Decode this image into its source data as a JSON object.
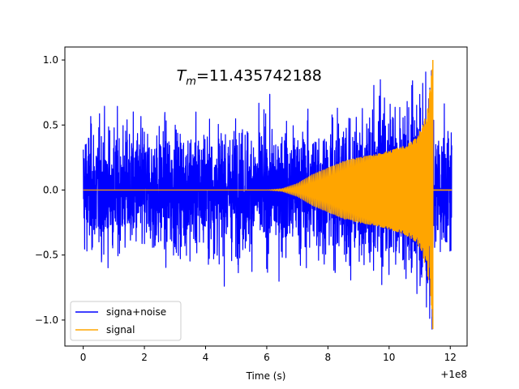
{
  "chart_data": {
    "type": "line",
    "title": "",
    "annotation": {
      "symbol": "T",
      "subscript": "m",
      "value_text": "=11.435742188",
      "x": 3.05,
      "y": 0.84
    },
    "xlabel": "Time (s)",
    "ylabel": "",
    "x_offset_label": "+1e8",
    "xlim": [
      -0.6,
      12.55
    ],
    "ylim": [
      -1.2,
      1.1
    ],
    "xticks": [
      0,
      2,
      4,
      6,
      8,
      10,
      12
    ],
    "xtick_labels": [
      "0",
      "2",
      "4",
      "6",
      "8",
      "10",
      "12"
    ],
    "yticks": [
      -1.0,
      -0.5,
      0.0,
      0.5,
      1.0
    ],
    "ytick_labels": [
      "−1.0",
      "−0.5",
      "0.0",
      "0.5",
      "1.0"
    ],
    "grid": false,
    "legend_position": "lower-left",
    "series": [
      {
        "name": "signa+noise",
        "color": "#0000ff",
        "x_range": [
          0,
          12.05
        ],
        "noise_amplitude": 0.6,
        "noise_peak_max": 1.0,
        "noise_peak_min": -1.08
      },
      {
        "name": "signal",
        "color": "#ffa500",
        "x_range": [
          0,
          12.05
        ],
        "chirp_onset": 6.5,
        "merger_time": 11.43,
        "envelope": [
          [
            0,
            0.0
          ],
          [
            6.0,
            0.0
          ],
          [
            6.5,
            0.01
          ],
          [
            7.0,
            0.05
          ],
          [
            7.5,
            0.12
          ],
          [
            8.0,
            0.17
          ],
          [
            8.5,
            0.22
          ],
          [
            9.0,
            0.25
          ],
          [
            9.5,
            0.27
          ],
          [
            10.0,
            0.3
          ],
          [
            10.5,
            0.34
          ],
          [
            10.9,
            0.4
          ],
          [
            11.1,
            0.5
          ],
          [
            11.3,
            0.7
          ],
          [
            11.43,
            1.0
          ]
        ],
        "peak_max": 1.0,
        "peak_min": -1.07,
        "post_merger_value": 0.0
      }
    ]
  }
}
